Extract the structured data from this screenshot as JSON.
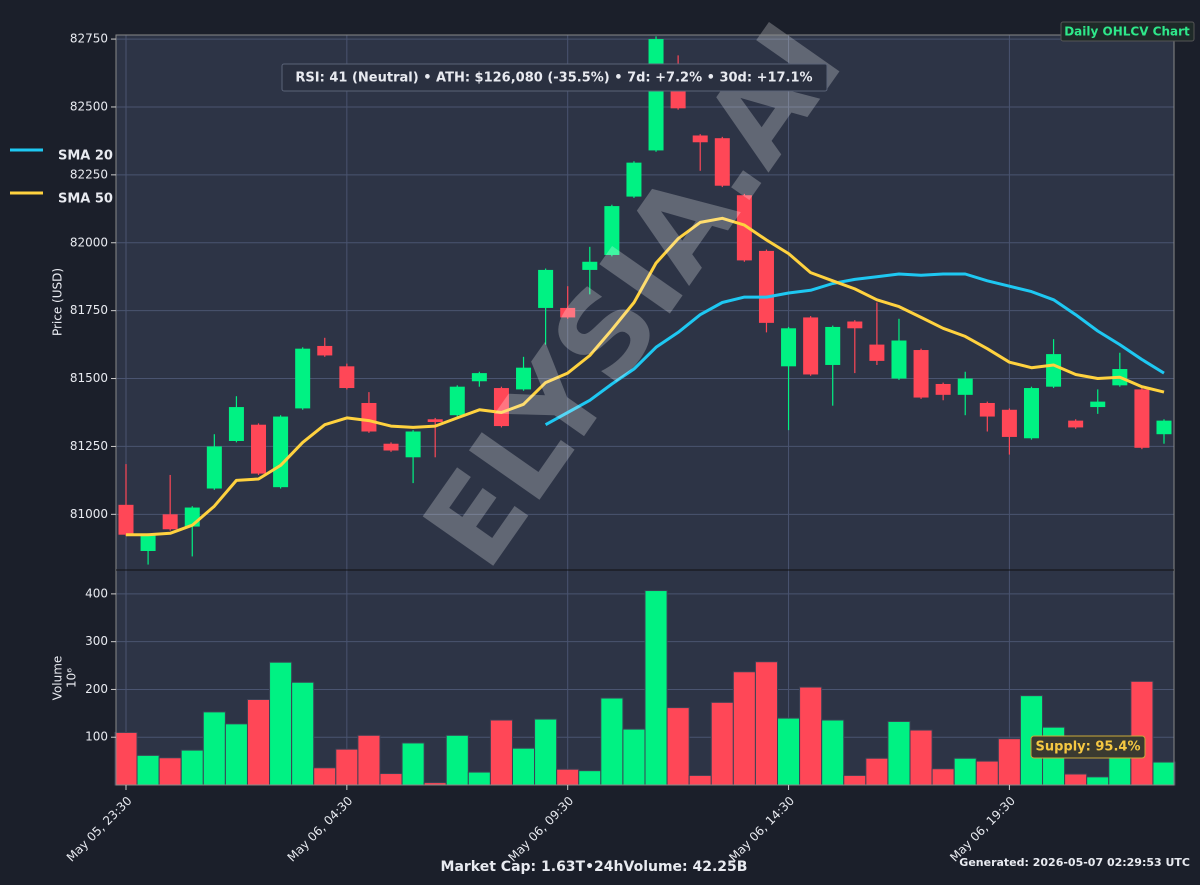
{
  "chart_data": {
    "type": "candlestick",
    "badge": "Daily OHLCV Chart",
    "annotation": "RSI: 41 (Neutral) • ATH: $126,080 (-35.5%) • 7d: +7.2% • 30d: +17.1%",
    "watermark": "ELYSIA.AI",
    "ylabel": "Price (USD)",
    "up_color": "#00f283",
    "down_color": "#ff4757",
    "categories": [
      "May 05, 23:30",
      null,
      null,
      null,
      null,
      null,
      null,
      null,
      null,
      null,
      "May 06, 04:30",
      null,
      null,
      null,
      null,
      null,
      null,
      null,
      null,
      null,
      "May 06, 09:30",
      null,
      null,
      null,
      null,
      null,
      null,
      null,
      null,
      null,
      "May 06, 14:30",
      null,
      null,
      null,
      null,
      null,
      null,
      null,
      null,
      null,
      "May 06, 19:30",
      null,
      null,
      null,
      null,
      null,
      null,
      null
    ],
    "open": [
      81035,
      80865,
      81000,
      80955,
      81095,
      81270,
      81330,
      81100,
      81390,
      81620,
      81545,
      81410,
      81260,
      81210,
      81350,
      81365,
      81490,
      81465,
      81460,
      81760,
      81760,
      81900,
      81955,
      82170,
      82340,
      82645,
      82395,
      82385,
      82175,
      81970,
      81545,
      81725,
      81550,
      81710,
      81625,
      81500,
      81605,
      81480,
      81440,
      81410,
      81385,
      81280,
      81470,
      81345,
      81395,
      81475,
      81460,
      81295
    ],
    "high": [
      81185,
      80930,
      81145,
      81030,
      81295,
      81435,
      81335,
      81365,
      81615,
      81650,
      81555,
      81450,
      81265,
      81310,
      81355,
      81475,
      81525,
      81470,
      81580,
      81905,
      81840,
      81985,
      82140,
      82300,
      82760,
      82690,
      82400,
      82390,
      82180,
      81975,
      81690,
      81730,
      81695,
      81715,
      81780,
      81720,
      81610,
      81485,
      81525,
      81415,
      81390,
      81470,
      81645,
      81350,
      81460,
      81595,
      81470,
      81350
    ],
    "low": [
      80920,
      80815,
      80940,
      80845,
      81090,
      81265,
      81145,
      81095,
      81385,
      81580,
      81460,
      81300,
      81230,
      81115,
      81210,
      81360,
      81470,
      81320,
      81455,
      81625,
      81720,
      81810,
      81950,
      82165,
      82335,
      82490,
      82265,
      82205,
      81930,
      81670,
      81310,
      81510,
      81400,
      81520,
      81550,
      81495,
      81425,
      81420,
      81365,
      81305,
      81220,
      81275,
      81465,
      81315,
      81370,
      81470,
      81240,
      81260
    ],
    "close": [
      80925,
      80925,
      80945,
      81025,
      81250,
      81395,
      81150,
      81360,
      81610,
      81585,
      81465,
      81305,
      81235,
      81305,
      81340,
      81470,
      81520,
      81325,
      81540,
      81900,
      81725,
      81930,
      82135,
      82295,
      82750,
      82495,
      82370,
      82210,
      81935,
      81705,
      81685,
      81515,
      81690,
      81685,
      81565,
      81640,
      81430,
      81440,
      81500,
      81360,
      81285,
      81465,
      81590,
      81320,
      81415,
      81535,
      81245,
      81345
    ],
    "series": [
      {
        "name": "SMA 20",
        "color": "#1ec8f2",
        "values": [
          null,
          null,
          null,
          null,
          null,
          null,
          null,
          null,
          null,
          null,
          null,
          null,
          null,
          null,
          null,
          null,
          null,
          null,
          null,
          81330,
          81375,
          81420,
          81480,
          81535,
          81615,
          81670,
          81735,
          81780,
          81800,
          81800,
          81815,
          81825,
          81850,
          81865,
          81875,
          81885,
          81880,
          81885,
          81885,
          81860,
          81840,
          81820,
          81790,
          81735,
          81675,
          81625,
          81570,
          81520
        ]
      },
      {
        "name": "SMA 50",
        "color": "#ffd23f",
        "values": [
          80925,
          80925,
          80930,
          80960,
          81030,
          81125,
          81130,
          81180,
          81265,
          81330,
          81355,
          81345,
          81325,
          81320,
          81325,
          81355,
          81385,
          81375,
          81405,
          81485,
          81520,
          81585,
          81680,
          81780,
          81925,
          82015,
          82075,
          82090,
          82065,
          82010,
          81960,
          81890,
          81860,
          81830,
          81790,
          81765,
          81725,
          81685,
          81655,
          81610,
          81560,
          81540,
          81550,
          81515,
          81500,
          81505,
          81470,
          81450
        ]
      }
    ],
    "ylim": [
      80795,
      82765
    ],
    "yticks": [
      81000,
      81250,
      81500,
      81750,
      82000,
      82250,
      82500,
      82750
    ],
    "volume": {
      "ylabel": "Volume",
      "unit": "10⁶",
      "values": [
        110,
        62,
        57,
        73,
        153,
        128,
        179,
        257,
        215,
        36,
        75,
        104,
        24,
        88,
        5,
        104,
        27,
        136,
        77,
        138,
        33,
        30,
        182,
        117,
        407,
        162,
        20,
        173,
        237,
        258,
        140,
        205,
        136,
        20,
        56,
        133,
        115,
        34,
        56,
        50,
        97,
        187,
        121,
        23,
        17,
        60,
        217,
        48
      ],
      "ylim": [
        0,
        450
      ],
      "yticks": [
        100,
        200,
        300,
        400
      ]
    },
    "supply": "Supply: 95.4%",
    "market_cap": "Market Cap: 1.63T•24hVolume: 42.25B",
    "generated": "Generated: 2026-05-07 02:29:53 UTC"
  }
}
